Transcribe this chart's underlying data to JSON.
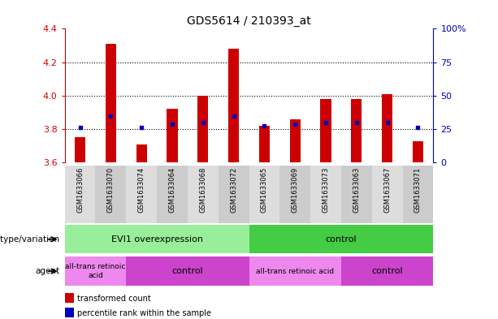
{
  "title": "GDS5614 / 210393_at",
  "samples": [
    "GSM1633066",
    "GSM1633070",
    "GSM1633074",
    "GSM1633064",
    "GSM1633068",
    "GSM1633072",
    "GSM1633065",
    "GSM1633069",
    "GSM1633073",
    "GSM1633063",
    "GSM1633067",
    "GSM1633071"
  ],
  "bar_values": [
    3.75,
    4.31,
    3.71,
    3.92,
    4.0,
    4.28,
    3.82,
    3.86,
    3.98,
    3.98,
    4.01,
    3.73
  ],
  "percentile_values": [
    3.81,
    3.88,
    3.81,
    3.83,
    3.84,
    3.88,
    3.82,
    3.83,
    3.84,
    3.84,
    3.84,
    3.81
  ],
  "bar_base": 3.6,
  "ylim": [
    3.6,
    4.4
  ],
  "yticks_left": [
    3.6,
    3.8,
    4.0,
    4.2,
    4.4
  ],
  "yticks_right": [
    0,
    25,
    50,
    75,
    100
  ],
  "yticks_right_labels": [
    "0",
    "25",
    "50",
    "75",
    "100%"
  ],
  "bar_color": "#CC0000",
  "percentile_color": "#0000BB",
  "left_ycolor": "#CC0000",
  "right_ycolor": "#0000BB",
  "genotype_groups": [
    {
      "label": "EVI1 overexpression",
      "start": 0,
      "end": 6,
      "color": "#99EE99"
    },
    {
      "label": "control",
      "start": 6,
      "end": 12,
      "color": "#44CC44"
    }
  ],
  "agent_groups": [
    {
      "label": "all-trans retinoic\nacid",
      "start": 0,
      "end": 2,
      "color": "#EE88EE"
    },
    {
      "label": "control",
      "start": 2,
      "end": 6,
      "color": "#CC44CC"
    },
    {
      "label": "all-trans retinoic acid",
      "start": 6,
      "end": 9,
      "color": "#EE88EE"
    },
    {
      "label": "control",
      "start": 9,
      "end": 12,
      "color": "#CC44CC"
    }
  ],
  "legend_items": [
    {
      "color": "#CC0000",
      "label": "transformed count"
    },
    {
      "color": "#0000BB",
      "label": "percentile rank within the sample"
    }
  ],
  "plot_bg_color": "#FFFFFF",
  "sample_bg_even": "#DDDDDD",
  "sample_bg_odd": "#CCCCCC"
}
